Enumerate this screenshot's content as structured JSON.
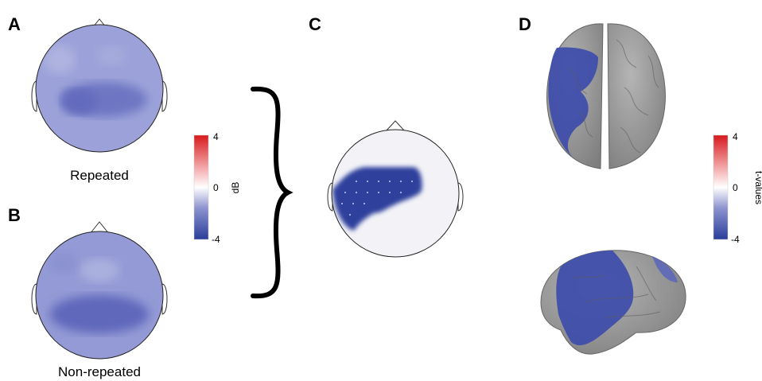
{
  "panels": {
    "a": {
      "letter": "A",
      "caption": "Repeated"
    },
    "b": {
      "letter": "B",
      "caption": "Non-repeated"
    },
    "c": {
      "letter": "C"
    },
    "d": {
      "letter": "D"
    }
  },
  "colorbar_db": {
    "max": "4",
    "mid": "0",
    "min": "-4",
    "unit": "dB"
  },
  "colorbar_t": {
    "max": "4",
    "mid": "0",
    "min": "-4",
    "unit": "t-values"
  },
  "colors": {
    "blue_strong": "#2a3d9a",
    "blue_mid": "#6a73c4",
    "blue_light": "#9ea4da",
    "red_strong": "#d7191c",
    "brain_gray": "#9a9a9a"
  }
}
